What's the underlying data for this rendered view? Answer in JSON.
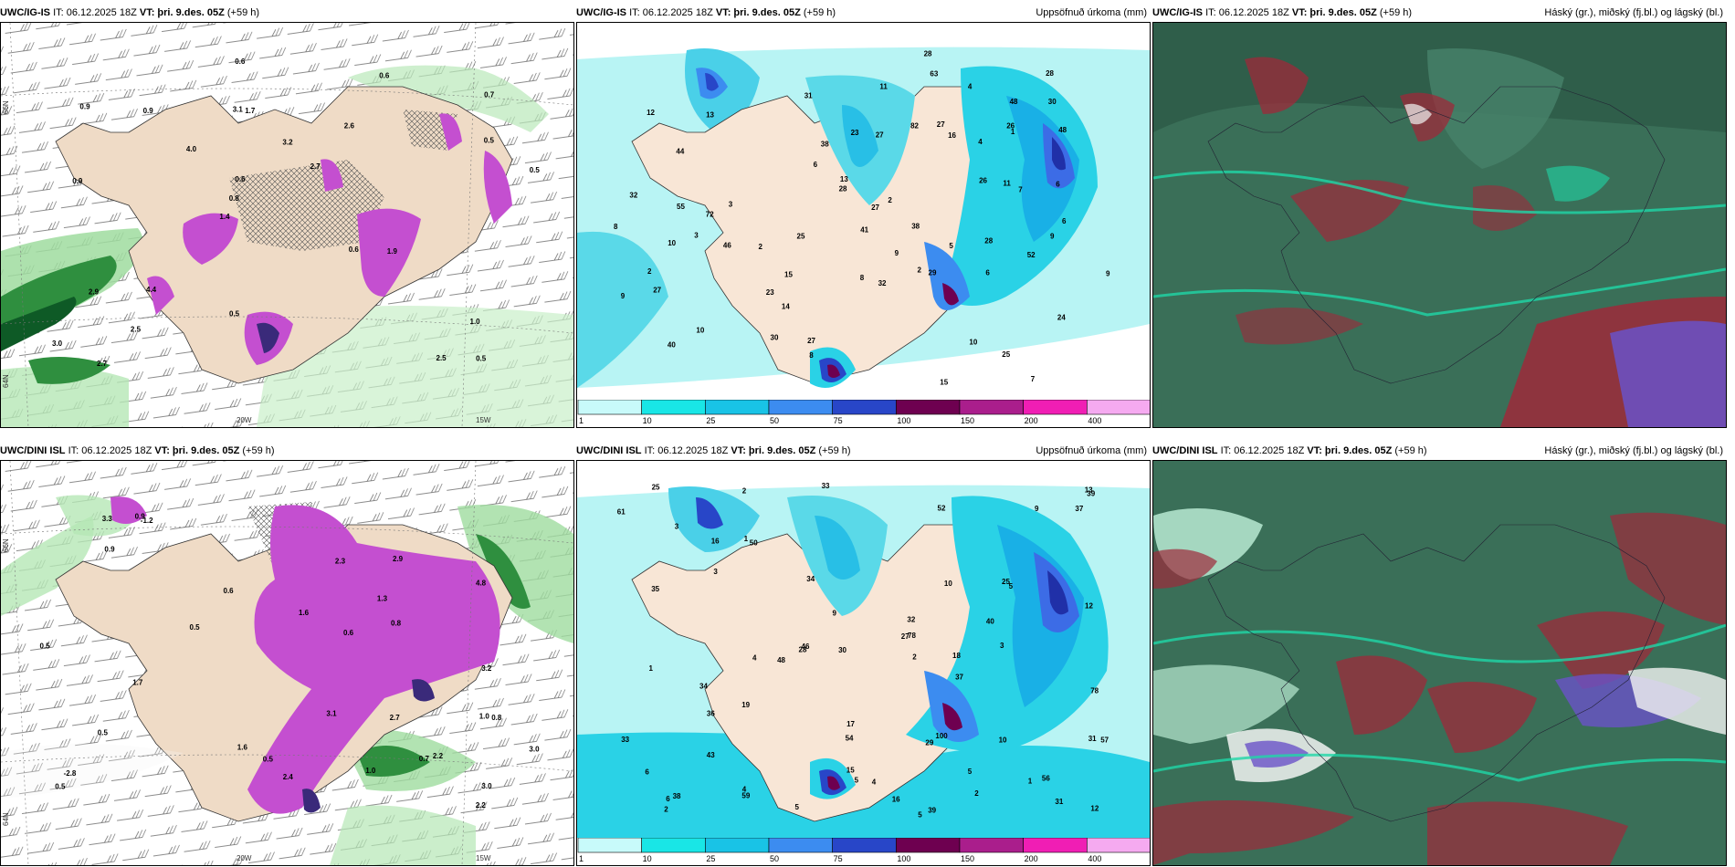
{
  "panels": [
    {
      "model": "UWC/IG-IS",
      "it": "IT: 06.12.2025 18Z",
      "vt_label": "VT:",
      "vt": "þri. 9.des. 05Z",
      "lead": "(+59 h)",
      "title_right": ""
    },
    {
      "model": "UWC/IG-IS",
      "it": "IT: 06.12.2025 18Z",
      "vt_label": "VT:",
      "vt": "þri. 9.des. 05Z",
      "lead": "(+59 h)",
      "title_right": "Uppsöfnuð úrkoma (mm)"
    },
    {
      "model": "UWC/IG-IS",
      "it": "IT: 06.12.2025 18Z",
      "vt_label": "VT:",
      "vt": "þri. 9.des. 05Z",
      "lead": "(+59 h)",
      "title_right": "Háský (gr.), miðský (fj.bl.) og lágský (bl.)"
    },
    {
      "model": "UWC/DINI ISL",
      "it": "IT: 06.12.2025 18Z",
      "vt_label": "VT:",
      "vt": "þri. 9.des. 05Z",
      "lead": "(+59 h)",
      "title_right": ""
    },
    {
      "model": "UWC/DINI ISL",
      "it": "IT: 06.12.2025 18Z",
      "vt_label": "VT:",
      "vt": "þri. 9.des. 05Z",
      "lead": "(+59 h)",
      "title_right": "Uppsöfnuð úrkoma (mm)"
    },
    {
      "model": "UWC/DINI ISL",
      "it": "IT: 06.12.2025 18Z",
      "vt_label": "VT:",
      "vt": "þri. 9.des. 05Z",
      "lead": "(+59 h)",
      "title_right": "Háský (gr.), miðský (fj.bl.) og lágský (bl.)"
    }
  ],
  "axis_labels": {
    "lon_20w": "20W",
    "lon_15w": "15W",
    "lat_66n": "66N",
    "lat_64n": "64N"
  },
  "colorbar": {
    "ticks": [
      "1",
      "10",
      "25",
      "50",
      "75",
      "100",
      "150",
      "200",
      "400"
    ],
    "colors": [
      "#c8fafa",
      "#19e6e6",
      "#19c3e6",
      "#3c8cf0",
      "#2846c8",
      "#6e0050",
      "#aa1e8c",
      "#f01eb4",
      "#f5aaf0"
    ]
  },
  "map_values": {
    "p1": [
      "0.5",
      "0.9",
      "0.7",
      "1.4",
      "2.6",
      "2.7",
      "3.1",
      "3.2",
      "2.9",
      "4.0",
      "3.0",
      "2.5",
      "1.7",
      "2.7",
      "1.9",
      "0.9",
      "0.6",
      "0.5",
      "0.6",
      "0.5",
      "0.8",
      "0.5",
      "0.6",
      "0.9",
      "0.6",
      "4.4",
      "2.5",
      "1.0"
    ],
    "p2": [
      "7",
      "3",
      "2",
      "12",
      "24",
      "44",
      "10",
      "2",
      "4",
      "23",
      "16",
      "25",
      "14",
      "31",
      "38",
      "27",
      "28",
      "27",
      "32",
      "40",
      "28",
      "27",
      "11",
      "9",
      "6",
      "55",
      "46",
      "41",
      "28",
      "30",
      "29",
      "10",
      "23",
      "27",
      "38",
      "52",
      "9",
      "10",
      "48",
      "15",
      "15",
      "32",
      "30",
      "28",
      "25",
      "72",
      "48",
      "63",
      "82",
      "8",
      "5",
      "6",
      "6",
      "7",
      "6",
      "8",
      "8",
      "13",
      "9",
      "26",
      "27",
      "26",
      "13",
      "11",
      "9",
      "2",
      "3",
      "2",
      "4",
      "1"
    ],
    "p4": [
      "0.5",
      "0.6",
      "1.0",
      "3.0",
      "2.3",
      "2.2",
      "1.6",
      "1.3",
      "0.8",
      "-2.8",
      "-1.2",
      "3.1",
      "3.2",
      "2.4",
      "3.3",
      "1.6",
      "2.2",
      "4.8",
      "3.0",
      "2.7",
      "1.7",
      "2.9",
      "0.5",
      "0.6",
      "0.9",
      "0.5",
      "0.7",
      "1.0",
      "0.9",
      "0.8",
      "0.5",
      "0.5"
    ],
    "p5": [
      "5",
      "5",
      "4",
      "5",
      "2",
      "3",
      "4",
      "31",
      "33",
      "34",
      "9",
      "5",
      "46",
      "54",
      "52",
      "27",
      "35",
      "59",
      "48",
      "61",
      "29",
      "39",
      "32",
      "6",
      "5",
      "34",
      "33",
      "36",
      "25",
      "37",
      "30",
      "39",
      "17",
      "37",
      "43",
      "18",
      "31",
      "6",
      "10",
      "56",
      "78",
      "40",
      "57",
      "38",
      "50",
      "100",
      "78",
      "16",
      "16",
      "15",
      "13",
      "12",
      "12",
      "10",
      "19",
      "25",
      "28",
      "9",
      "1",
      "1",
      "1",
      "2",
      "3",
      "3",
      "4",
      "2",
      "2"
    ]
  },
  "cloud_palette": {
    "base": "#3a6f58",
    "light_green": "#b9ead2",
    "teal": "#1fd7a7",
    "red": "#9e2a3a",
    "blue": "#6a52c8",
    "white": "#f2f4f2"
  }
}
